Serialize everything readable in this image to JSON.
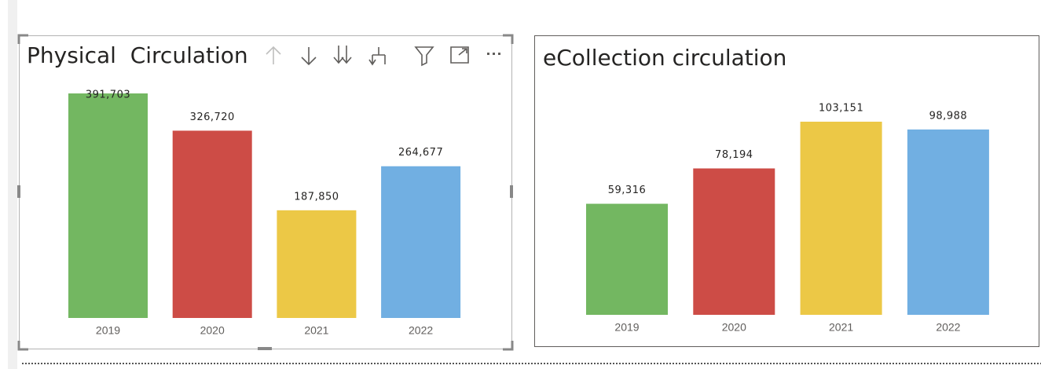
{
  "chart_data": [
    {
      "type": "bar",
      "title": "Physical  Circulation",
      "categories": [
        "2019",
        "2020",
        "2021",
        "2022"
      ],
      "values": [
        391703,
        326720,
        187850,
        264677
      ],
      "value_labels": [
        "391,703",
        "326,720",
        "187,850",
        "264,677"
      ],
      "colors": [
        "#73b761",
        "#cd4c46",
        "#ecc846",
        "#71afe2"
      ]
    },
    {
      "type": "bar",
      "title": "eCollection circulation",
      "categories": [
        "2019",
        "2020",
        "2021",
        "2022"
      ],
      "values": [
        59316,
        78194,
        103151,
        98988
      ],
      "value_labels": [
        "59,316",
        "78,194",
        "103,151",
        "98,988"
      ],
      "colors": [
        "#73b761",
        "#cd4c46",
        "#ecc846",
        "#71afe2"
      ]
    }
  ]
}
